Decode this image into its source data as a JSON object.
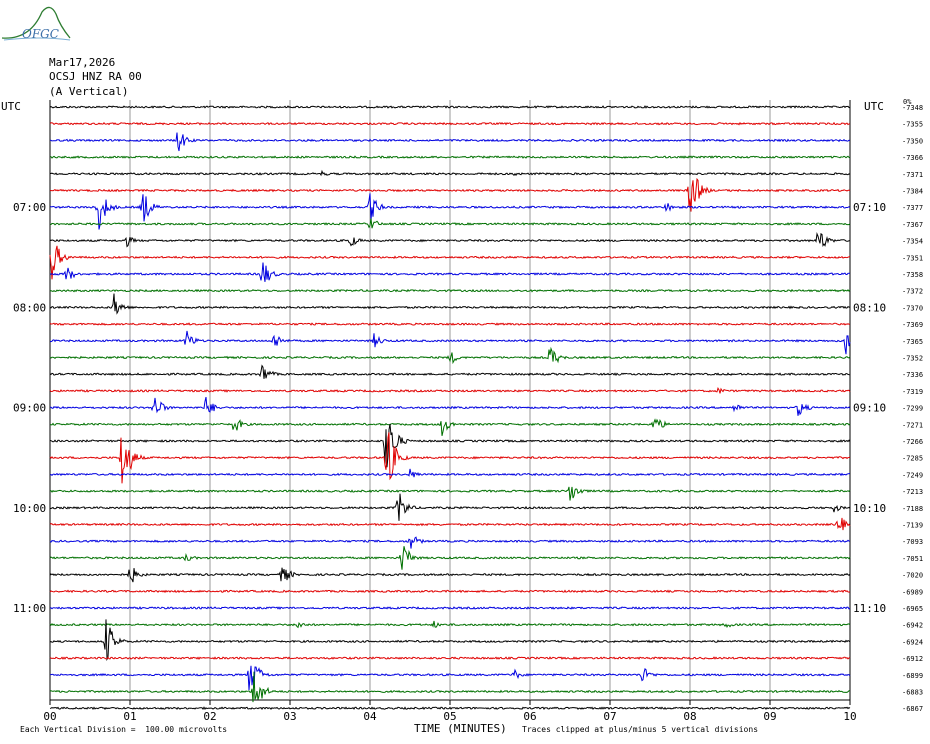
{
  "logo": {
    "text": "OFGC",
    "color": "#2e7d32"
  },
  "header": {
    "date": "Mar17,2026",
    "station": "OCSJ HNZ RA 00",
    "component": "(A Vertical)"
  },
  "utc_left": "UTC",
  "utc_right": "UTC",
  "corner_label": "0%",
  "left_times": [
    "07:00",
    "08:00",
    "09:00",
    "10:00",
    "11:00"
  ],
  "right_times": [
    "07:10",
    "08:10",
    "09:10",
    "10:10",
    "11:10"
  ],
  "footer": {
    "division": "Each Vertical Division =  100.00 microvolts",
    "xlabel": "TIME (MINUTES)",
    "clip": "Traces clipped at plus/minus 5 vertical divisions"
  },
  "colors": {
    "black": "#000000",
    "red": "#e00000",
    "blue": "#0000e0",
    "green": "#007000",
    "grid": "#808080"
  },
  "chart_data": {
    "type": "line",
    "title": "",
    "xlabel": "TIME (MINUTES)",
    "xlim": [
      0,
      10
    ],
    "x_ticks": [
      "00",
      "01",
      "02",
      "03",
      "04",
      "05",
      "06",
      "07",
      "08",
      "09",
      "10"
    ],
    "trace_colors_cycle": [
      "black",
      "red",
      "blue",
      "green"
    ],
    "right_offsets": [
      "-7348",
      "-7355",
      "-7350",
      "-7366",
      "-7371",
      "-7384",
      "-7377",
      "-7367",
      "-7354",
      "-7351",
      "-7358",
      "-7372",
      "-7370",
      "-7369",
      "-7365",
      "-7352",
      "-7336",
      "-7319",
      "-7299",
      "-7271",
      "-7266",
      "-7285",
      "-7249",
      "-7213",
      "-7188",
      "-7139",
      "-7093",
      "-7051",
      "-7020",
      "-6989",
      "-6965",
      "-6942",
      "-6924",
      "-6912",
      "-6899",
      "-6883",
      "-6867"
    ],
    "events": [
      {
        "row": 2,
        "minute": 1.6,
        "amp": 14
      },
      {
        "row": 4,
        "minute": 3.4,
        "amp": 3
      },
      {
        "row": 4,
        "minute": 5.8,
        "amp": 3
      },
      {
        "row": 5,
        "minute": 8.0,
        "amp": 34
      },
      {
        "row": 6,
        "minute": 0.6,
        "amp": 28
      },
      {
        "row": 6,
        "minute": 1.15,
        "amp": 22
      },
      {
        "row": 6,
        "minute": 4.0,
        "amp": 16
      },
      {
        "row": 6,
        "minute": 7.7,
        "amp": 6
      },
      {
        "row": 7,
        "minute": 4.0,
        "amp": 8
      },
      {
        "row": 8,
        "minute": 0.95,
        "amp": 7
      },
      {
        "row": 8,
        "minute": 3.75,
        "amp": 8
      },
      {
        "row": 8,
        "minute": 9.6,
        "amp": 16
      },
      {
        "row": 9,
        "minute": 0.02,
        "amp": 26
      },
      {
        "row": 10,
        "minute": 0.2,
        "amp": 10
      },
      {
        "row": 10,
        "minute": 2.65,
        "amp": 18
      },
      {
        "row": 12,
        "minute": 0.8,
        "amp": 14
      },
      {
        "row": 14,
        "minute": 1.7,
        "amp": 12
      },
      {
        "row": 14,
        "minute": 2.8,
        "amp": 10
      },
      {
        "row": 14,
        "minute": 4.05,
        "amp": 8
      },
      {
        "row": 14,
        "minute": 9.95,
        "amp": 16
      },
      {
        "row": 15,
        "minute": 5.0,
        "amp": 8
      },
      {
        "row": 15,
        "minute": 6.25,
        "amp": 14
      },
      {
        "row": 16,
        "minute": 2.65,
        "amp": 12
      },
      {
        "row": 17,
        "minute": 8.35,
        "amp": 4
      },
      {
        "row": 18,
        "minute": 1.3,
        "amp": 16
      },
      {
        "row": 18,
        "minute": 1.95,
        "amp": 12
      },
      {
        "row": 18,
        "minute": 8.55,
        "amp": 6
      },
      {
        "row": 18,
        "minute": 9.35,
        "amp": 10
      },
      {
        "row": 19,
        "minute": 2.3,
        "amp": 10
      },
      {
        "row": 19,
        "minute": 4.9,
        "amp": 12
      },
      {
        "row": 19,
        "minute": 7.55,
        "amp": 12
      },
      {
        "row": 20,
        "minute": 4.2,
        "amp": 45
      },
      {
        "row": 21,
        "minute": 0.9,
        "amp": 42
      },
      {
        "row": 21,
        "minute": 4.2,
        "amp": 45
      },
      {
        "row": 22,
        "minute": 4.5,
        "amp": 6
      },
      {
        "row": 23,
        "minute": 6.5,
        "amp": 14
      },
      {
        "row": 24,
        "minute": 4.35,
        "amp": 20
      },
      {
        "row": 24,
        "minute": 9.8,
        "amp": 5
      },
      {
        "row": 25,
        "minute": 9.85,
        "amp": 12
      },
      {
        "row": 26,
        "minute": 4.5,
        "amp": 10
      },
      {
        "row": 27,
        "minute": 1.7,
        "amp": 5
      },
      {
        "row": 27,
        "minute": 4.4,
        "amp": 18
      },
      {
        "row": 28,
        "minute": 1.0,
        "amp": 12
      },
      {
        "row": 28,
        "minute": 2.9,
        "amp": 12
      },
      {
        "row": 31,
        "minute": 3.1,
        "amp": 5
      },
      {
        "row": 31,
        "minute": 4.8,
        "amp": 4
      },
      {
        "row": 31,
        "minute": 8.45,
        "amp": 4
      },
      {
        "row": 32,
        "minute": 0.7,
        "amp": 26
      },
      {
        "row": 34,
        "minute": 2.5,
        "amp": 28
      },
      {
        "row": 34,
        "minute": 5.8,
        "amp": 6
      },
      {
        "row": 34,
        "minute": 7.4,
        "amp": 10
      },
      {
        "row": 35,
        "minute": 2.55,
        "amp": 26
      }
    ]
  }
}
